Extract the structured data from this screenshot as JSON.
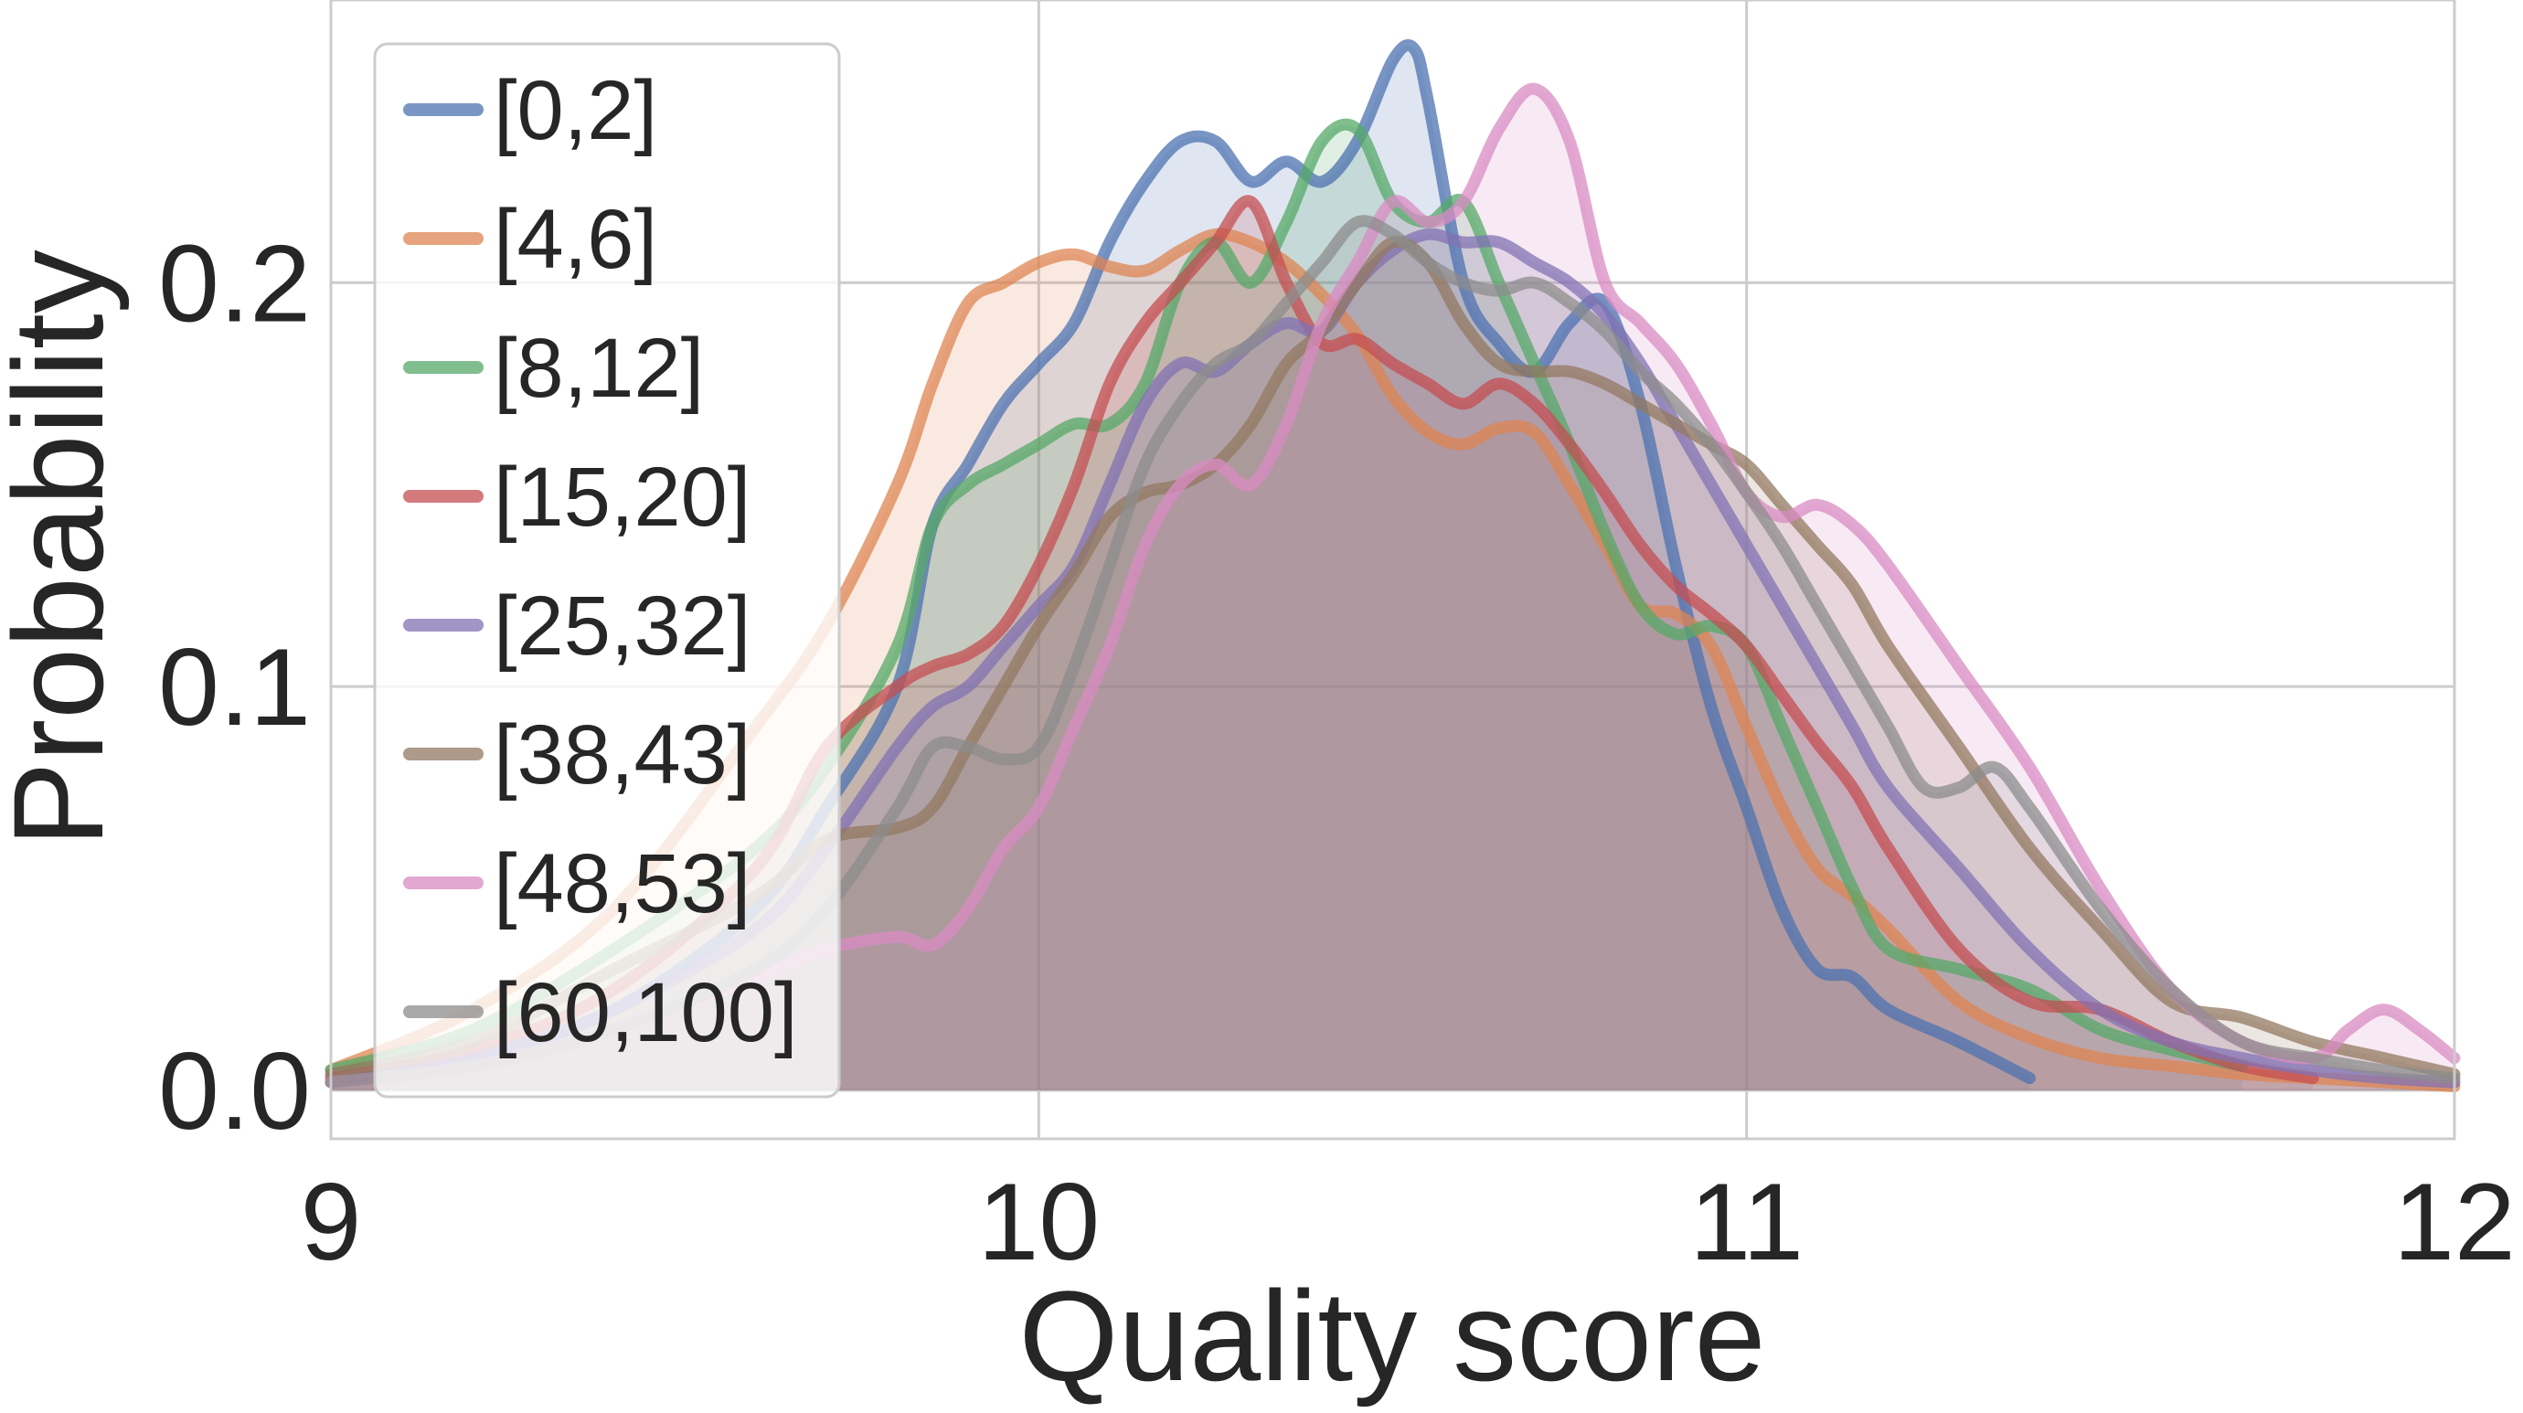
{
  "chart_data": {
    "type": "area",
    "title": "",
    "xlabel": "Quality score",
    "ylabel": "Probability",
    "xlim": [
      9,
      12
    ],
    "ylim": [
      -0.012,
      0.27
    ],
    "x_ticks": [
      9,
      10,
      11,
      12
    ],
    "x_tick_labels": [
      "9",
      "10",
      "11",
      "12"
    ],
    "y_ticks": [
      0.0,
      0.1,
      0.2
    ],
    "y_tick_labels": [
      "0.0",
      "0.1",
      "0.2"
    ],
    "grid": true,
    "legend_position": "top-left",
    "series": [
      {
        "name": "[0,2]",
        "color": "#4c72b0",
        "x": [
          9.0,
          9.2,
          9.4,
          9.6,
          9.7,
          9.8,
          9.85,
          9.9,
          9.95,
          10.0,
          10.05,
          10.1,
          10.15,
          10.2,
          10.25,
          10.3,
          10.35,
          10.4,
          10.45,
          10.5,
          10.53,
          10.55,
          10.6,
          10.65,
          10.7,
          10.75,
          10.8,
          10.85,
          10.9,
          10.95,
          11.0,
          11.05,
          11.1,
          11.15,
          11.2,
          11.3,
          11.4
        ],
        "y": [
          0.002,
          0.008,
          0.02,
          0.045,
          0.07,
          0.1,
          0.14,
          0.155,
          0.17,
          0.18,
          0.19,
          0.21,
          0.225,
          0.235,
          0.235,
          0.225,
          0.23,
          0.225,
          0.235,
          0.255,
          0.258,
          0.245,
          0.2,
          0.185,
          0.178,
          0.19,
          0.195,
          0.17,
          0.13,
          0.095,
          0.07,
          0.045,
          0.03,
          0.028,
          0.02,
          0.012,
          0.003
        ]
      },
      {
        "name": "[4,6]",
        "color": "#dd8452",
        "x": [
          9.0,
          9.2,
          9.4,
          9.6,
          9.7,
          9.8,
          9.85,
          9.9,
          9.95,
          10.0,
          10.05,
          10.1,
          10.15,
          10.2,
          10.25,
          10.3,
          10.35,
          10.4,
          10.45,
          10.5,
          10.55,
          10.6,
          10.65,
          10.7,
          10.75,
          10.8,
          10.85,
          10.9,
          10.95,
          11.0,
          11.05,
          11.1,
          11.15,
          11.2,
          11.3,
          11.4,
          11.5,
          11.6,
          11.7,
          11.8,
          11.9,
          12.0
        ],
        "y": [
          0.005,
          0.02,
          0.045,
          0.09,
          0.115,
          0.15,
          0.175,
          0.195,
          0.2,
          0.205,
          0.207,
          0.204,
          0.203,
          0.208,
          0.212,
          0.21,
          0.205,
          0.197,
          0.187,
          0.172,
          0.163,
          0.16,
          0.164,
          0.163,
          0.15,
          0.135,
          0.12,
          0.118,
          0.11,
          0.09,
          0.07,
          0.055,
          0.048,
          0.04,
          0.022,
          0.013,
          0.008,
          0.006,
          0.004,
          0.003,
          0.002,
          0.001
        ]
      },
      {
        "name": "[8,12]",
        "color": "#55a868",
        "x": [
          9.0,
          9.2,
          9.4,
          9.6,
          9.7,
          9.8,
          9.85,
          9.9,
          9.95,
          10.0,
          10.05,
          10.1,
          10.15,
          10.2,
          10.25,
          10.3,
          10.35,
          10.4,
          10.45,
          10.5,
          10.55,
          10.6,
          10.65,
          10.7,
          10.75,
          10.8,
          10.85,
          10.9,
          10.95,
          11.0,
          11.05,
          11.1,
          11.15,
          11.2,
          11.3,
          11.4,
          11.5,
          11.6,
          11.7
        ],
        "y": [
          0.005,
          0.015,
          0.035,
          0.06,
          0.08,
          0.11,
          0.14,
          0.15,
          0.155,
          0.16,
          0.165,
          0.165,
          0.175,
          0.2,
          0.21,
          0.2,
          0.215,
          0.235,
          0.238,
          0.22,
          0.215,
          0.22,
          0.2,
          0.18,
          0.16,
          0.138,
          0.12,
          0.113,
          0.115,
          0.11,
          0.09,
          0.07,
          0.05,
          0.035,
          0.03,
          0.025,
          0.015,
          0.01,
          0.006
        ]
      },
      {
        "name": "[15,20]",
        "color": "#c44e52",
        "x": [
          9.0,
          9.2,
          9.4,
          9.6,
          9.7,
          9.8,
          9.85,
          9.9,
          9.95,
          10.0,
          10.05,
          10.1,
          10.15,
          10.2,
          10.25,
          10.3,
          10.35,
          10.4,
          10.45,
          10.5,
          10.55,
          10.6,
          10.65,
          10.7,
          10.75,
          10.8,
          10.85,
          10.9,
          10.95,
          11.0,
          11.05,
          11.1,
          11.15,
          11.2,
          11.3,
          11.4,
          11.5,
          11.6,
          11.7,
          11.8
        ],
        "y": [
          0.003,
          0.01,
          0.025,
          0.055,
          0.085,
          0.1,
          0.105,
          0.108,
          0.115,
          0.13,
          0.15,
          0.175,
          0.19,
          0.2,
          0.21,
          0.22,
          0.2,
          0.185,
          0.186,
          0.18,
          0.175,
          0.17,
          0.175,
          0.17,
          0.16,
          0.148,
          0.135,
          0.125,
          0.118,
          0.11,
          0.098,
          0.086,
          0.075,
          0.06,
          0.035,
          0.022,
          0.02,
          0.012,
          0.006,
          0.003
        ]
      },
      {
        "name": "[25,32]",
        "color": "#8172b3",
        "x": [
          9.0,
          9.2,
          9.4,
          9.6,
          9.7,
          9.8,
          9.85,
          9.9,
          9.95,
          10.0,
          10.05,
          10.1,
          10.15,
          10.2,
          10.25,
          10.3,
          10.35,
          10.4,
          10.45,
          10.5,
          10.55,
          10.6,
          10.65,
          10.7,
          10.75,
          10.8,
          10.85,
          10.9,
          10.95,
          11.0,
          11.05,
          11.1,
          11.15,
          11.2,
          11.3,
          11.4,
          11.5,
          11.6,
          11.7,
          11.8,
          11.9,
          12.0
        ],
        "y": [
          0.002,
          0.008,
          0.02,
          0.04,
          0.06,
          0.085,
          0.095,
          0.1,
          0.11,
          0.12,
          0.13,
          0.15,
          0.17,
          0.18,
          0.178,
          0.185,
          0.19,
          0.188,
          0.2,
          0.208,
          0.212,
          0.21,
          0.21,
          0.205,
          0.2,
          0.192,
          0.18,
          0.165,
          0.15,
          0.135,
          0.12,
          0.105,
          0.09,
          0.075,
          0.055,
          0.035,
          0.02,
          0.012,
          0.008,
          0.005,
          0.003,
          0.002
        ]
      },
      {
        "name": "[38,43]",
        "color": "#937860",
        "x": [
          9.0,
          9.2,
          9.4,
          9.6,
          9.7,
          9.8,
          9.85,
          9.9,
          9.95,
          10.0,
          10.05,
          10.1,
          10.15,
          10.2,
          10.25,
          10.3,
          10.35,
          10.4,
          10.45,
          10.5,
          10.55,
          10.6,
          10.65,
          10.7,
          10.75,
          10.8,
          10.85,
          10.9,
          10.95,
          11.0,
          11.05,
          11.1,
          11.15,
          11.2,
          11.3,
          11.4,
          11.5,
          11.6,
          11.7,
          11.8,
          11.9,
          12.0
        ],
        "y": [
          0.004,
          0.012,
          0.03,
          0.048,
          0.062,
          0.065,
          0.07,
          0.085,
          0.1,
          0.115,
          0.128,
          0.142,
          0.148,
          0.15,
          0.155,
          0.165,
          0.18,
          0.188,
          0.2,
          0.21,
          0.205,
          0.19,
          0.18,
          0.178,
          0.178,
          0.175,
          0.17,
          0.165,
          0.16,
          0.155,
          0.145,
          0.135,
          0.125,
          0.11,
          0.085,
          0.06,
          0.04,
          0.022,
          0.018,
          0.012,
          0.008,
          0.004
        ]
      },
      {
        "name": "[48,53]",
        "color": "#da8bc3",
        "x": [
          9.0,
          9.2,
          9.4,
          9.6,
          9.7,
          9.8,
          9.85,
          9.9,
          9.95,
          10.0,
          10.05,
          10.1,
          10.15,
          10.2,
          10.25,
          10.3,
          10.35,
          10.4,
          10.45,
          10.5,
          10.55,
          10.6,
          10.65,
          10.7,
          10.75,
          10.8,
          10.85,
          10.9,
          10.95,
          11.0,
          11.05,
          11.1,
          11.15,
          11.2,
          11.3,
          11.4,
          11.5,
          11.6,
          11.7,
          11.8,
          11.85,
          11.9,
          11.95,
          12.0
        ],
        "y": [
          0.002,
          0.006,
          0.015,
          0.028,
          0.035,
          0.038,
          0.036,
          0.045,
          0.06,
          0.07,
          0.09,
          0.11,
          0.135,
          0.15,
          0.155,
          0.15,
          0.165,
          0.19,
          0.205,
          0.22,
          0.215,
          0.22,
          0.238,
          0.248,
          0.235,
          0.2,
          0.19,
          0.18,
          0.165,
          0.148,
          0.142,
          0.145,
          0.14,
          0.13,
          0.105,
          0.08,
          0.05,
          0.025,
          0.012,
          0.008,
          0.015,
          0.02,
          0.015,
          0.008
        ]
      },
      {
        "name": "[60,100]",
        "color": "#8c8c8c",
        "x": [
          9.0,
          9.2,
          9.4,
          9.6,
          9.7,
          9.8,
          9.85,
          9.9,
          9.95,
          10.0,
          10.05,
          10.1,
          10.15,
          10.2,
          10.25,
          10.3,
          10.35,
          10.4,
          10.45,
          10.5,
          10.55,
          10.6,
          10.65,
          10.7,
          10.75,
          10.8,
          10.85,
          10.9,
          10.95,
          11.0,
          11.05,
          11.1,
          11.15,
          11.2,
          11.25,
          11.3,
          11.35,
          11.4,
          11.5,
          11.6,
          11.7,
          11.8,
          11.9,
          12.0
        ],
        "y": [
          0.002,
          0.006,
          0.015,
          0.03,
          0.045,
          0.07,
          0.085,
          0.085,
          0.082,
          0.085,
          0.105,
          0.13,
          0.155,
          0.17,
          0.18,
          0.185,
          0.195,
          0.205,
          0.215,
          0.212,
          0.205,
          0.2,
          0.198,
          0.2,
          0.195,
          0.188,
          0.178,
          0.17,
          0.16,
          0.148,
          0.135,
          0.12,
          0.105,
          0.09,
          0.075,
          0.075,
          0.08,
          0.07,
          0.045,
          0.025,
          0.012,
          0.008,
          0.005,
          0.003
        ]
      }
    ]
  }
}
